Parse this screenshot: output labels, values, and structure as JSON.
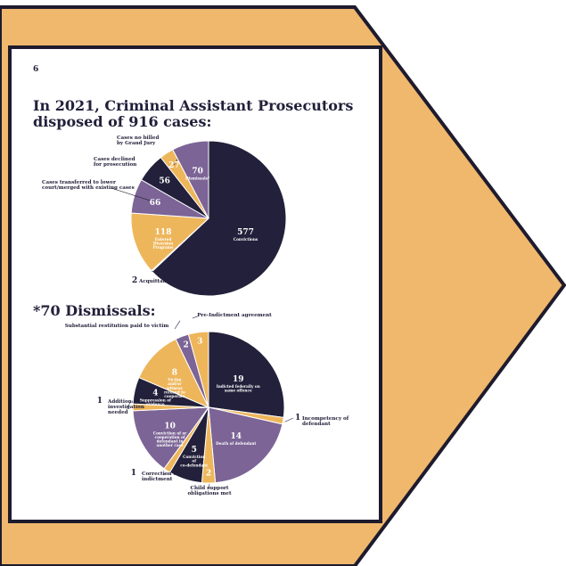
{
  "page_number": "6",
  "heading": "In 2021, Criminal Assistant Prosecutors disposed of 916 cases:",
  "heading2": "*70 Dismissals:",
  "colors": {
    "navy": "#22203a",
    "purple": "#7c6496",
    "gold": "#eeb65b",
    "frame": "#f0b86c",
    "outline": "#1e1b2e"
  },
  "chart_data": [
    {
      "type": "pie",
      "title": "In 2021, Criminal Assistant Prosecutors disposed of 916 cases:",
      "total": 916,
      "slices": [
        {
          "value": "577",
          "label": "Convictions",
          "color": "#22203a"
        },
        {
          "value": "2",
          "label": "Acquittals",
          "color": "#eeb65b"
        },
        {
          "value": "118",
          "label": "Entered Diversion Programs",
          "color": "#eeb65b"
        },
        {
          "value": "66",
          "label": "Cases transferred to lower court/merged with existing cases",
          "color": "#7c6496"
        },
        {
          "value": "56",
          "label": "Cases declined for prosecution",
          "color": "#22203a"
        },
        {
          "value": "27",
          "label": "Cases no billed by Grand Jury",
          "color": "#eeb65b"
        },
        {
          "value": "70",
          "label": "Dismissals*",
          "color": "#7c6496"
        }
      ]
    },
    {
      "type": "pie",
      "title": "*70 Dismissals:",
      "total": 70,
      "slices": [
        {
          "value": "19",
          "label": "Indicted federally on same offence",
          "color": "#22203a"
        },
        {
          "value": "1",
          "label": "Incompetency of defendant",
          "color": "#eeb65b"
        },
        {
          "value": "14",
          "label": "Death of defendant",
          "color": "#7c6496"
        },
        {
          "value": "2",
          "label": "Child support obligations met",
          "color": "#eeb65b"
        },
        {
          "value": "5",
          "label": "Conviction of co-defendant",
          "color": "#22203a"
        },
        {
          "value": "1",
          "label": "Correction of indictment",
          "color": "#eeb65b"
        },
        {
          "value": "10",
          "label": "Conviction of or cooperation of defendant in another case",
          "color": "#7c6496"
        },
        {
          "value": "1",
          "label": "Additional investigation needed",
          "color": "#eeb65b"
        },
        {
          "value": "4",
          "label": "Suppression of evidence",
          "color": "#22203a"
        },
        {
          "value": "8",
          "label": "Victim and/or witness refused to cooperate",
          "color": "#eeb65b"
        },
        {
          "value": "2",
          "label": "Substantial restitution paid to victim",
          "color": "#7c6496"
        },
        {
          "value": "3",
          "label": "Pre-Indictment agreement",
          "color": "#eeb65b"
        }
      ]
    }
  ]
}
